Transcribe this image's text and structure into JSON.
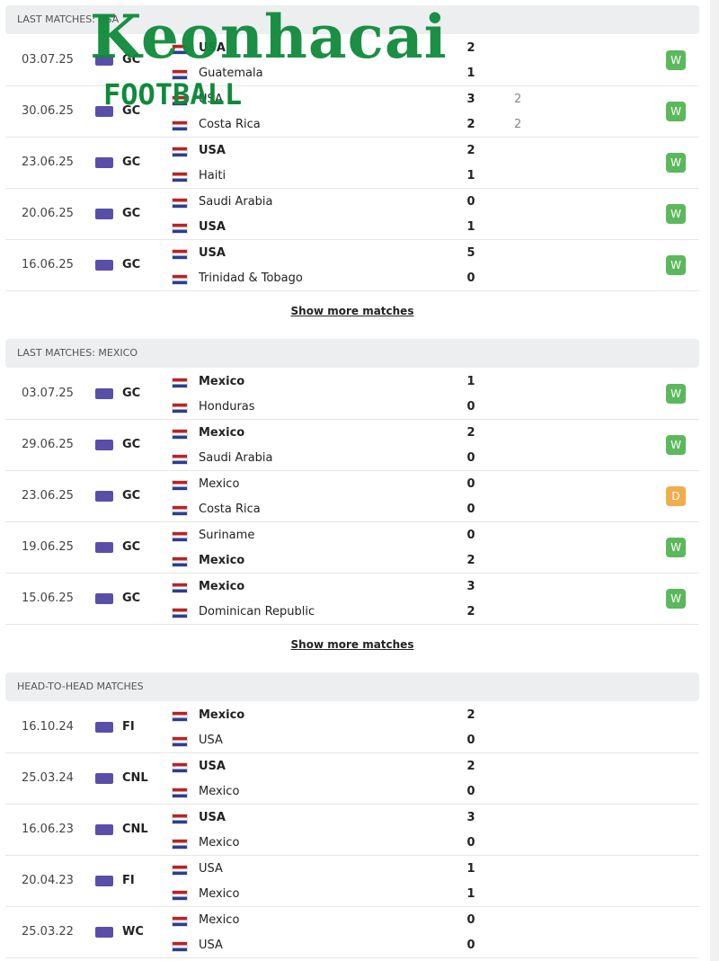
{
  "watermark": {
    "title": "Keonhacai",
    "subtitle": "FOOTBALL"
  },
  "sections": [
    {
      "title": "LAST MATCHES: USA",
      "more": "Show more matches",
      "matches": [
        {
          "date": "03.07.25",
          "competition": "GC",
          "home": {
            "name": "USA",
            "score": 2,
            "bold": true
          },
          "away": {
            "name": "Guatemala",
            "score": 1,
            "bold": false
          },
          "result": "W",
          "result_color": "#5cb85c"
        },
        {
          "date": "30.06.25",
          "competition": "GC",
          "home": {
            "name": "USA",
            "score": 3,
            "extra": 2,
            "bold": false
          },
          "away": {
            "name": "Costa Rica",
            "score": 2,
            "extra": 2,
            "bold": false
          },
          "result": "W",
          "result_color": "#5cb85c"
        },
        {
          "date": "23.06.25",
          "competition": "GC",
          "home": {
            "name": "USA",
            "score": 2,
            "bold": true
          },
          "away": {
            "name": "Haiti",
            "score": 1,
            "bold": false
          },
          "result": "W",
          "result_color": "#5cb85c"
        },
        {
          "date": "20.06.25",
          "competition": "GC",
          "home": {
            "name": "Saudi Arabia",
            "score": 0,
            "bold": false
          },
          "away": {
            "name": "USA",
            "score": 1,
            "bold": true
          },
          "result": "W",
          "result_color": "#5cb85c"
        },
        {
          "date": "16.06.25",
          "competition": "GC",
          "home": {
            "name": "USA",
            "score": 5,
            "bold": true
          },
          "away": {
            "name": "Trinidad & Tobago",
            "score": 0,
            "bold": false
          },
          "result": "W",
          "result_color": "#5cb85c"
        }
      ]
    },
    {
      "title": "LAST MATCHES: MEXICO",
      "more": "Show more matches",
      "matches": [
        {
          "date": "03.07.25",
          "competition": "GC",
          "home": {
            "name": "Mexico",
            "score": 1,
            "bold": true
          },
          "away": {
            "name": "Honduras",
            "score": 0,
            "bold": false
          },
          "result": "W",
          "result_color": "#5cb85c"
        },
        {
          "date": "29.06.25",
          "competition": "GC",
          "home": {
            "name": "Mexico",
            "score": 2,
            "bold": true
          },
          "away": {
            "name": "Saudi Arabia",
            "score": 0,
            "bold": false
          },
          "result": "W",
          "result_color": "#5cb85c"
        },
        {
          "date": "23.06.25",
          "competition": "GC",
          "home": {
            "name": "Mexico",
            "score": 0,
            "bold": false
          },
          "away": {
            "name": "Costa Rica",
            "score": 0,
            "bold": false
          },
          "result": "D",
          "result_color": "#f0ad4e"
        },
        {
          "date": "19.06.25",
          "competition": "GC",
          "home": {
            "name": "Suriname",
            "score": 0,
            "bold": false
          },
          "away": {
            "name": "Mexico",
            "score": 2,
            "bold": true
          },
          "result": "W",
          "result_color": "#5cb85c"
        },
        {
          "date": "15.06.25",
          "competition": "GC",
          "home": {
            "name": "Mexico",
            "score": 3,
            "bold": true
          },
          "away": {
            "name": "Dominican Republic",
            "score": 2,
            "bold": false
          },
          "result": "W",
          "result_color": "#5cb85c"
        }
      ]
    },
    {
      "title": "HEAD-TO-HEAD MATCHES",
      "matches": [
        {
          "date": "16.10.24",
          "competition": "FI",
          "home": {
            "name": "Mexico",
            "score": 2,
            "bold": true
          },
          "away": {
            "name": "USA",
            "score": 0,
            "bold": false
          }
        },
        {
          "date": "25.03.24",
          "competition": "CNL",
          "home": {
            "name": "USA",
            "score": 2,
            "bold": true
          },
          "away": {
            "name": "Mexico",
            "score": 0,
            "bold": false
          }
        },
        {
          "date": "16.06.23",
          "competition": "CNL",
          "home": {
            "name": "USA",
            "score": 3,
            "bold": true
          },
          "away": {
            "name": "Mexico",
            "score": 0,
            "bold": false
          }
        },
        {
          "date": "20.04.23",
          "competition": "FI",
          "home": {
            "name": "USA",
            "score": 1,
            "bold": false
          },
          "away": {
            "name": "Mexico",
            "score": 1,
            "bold": false
          }
        },
        {
          "date": "25.03.22",
          "competition": "WC",
          "home": {
            "name": "Mexico",
            "score": 0,
            "bold": false
          },
          "away": {
            "name": "USA",
            "score": 0,
            "bold": false
          }
        }
      ]
    }
  ]
}
